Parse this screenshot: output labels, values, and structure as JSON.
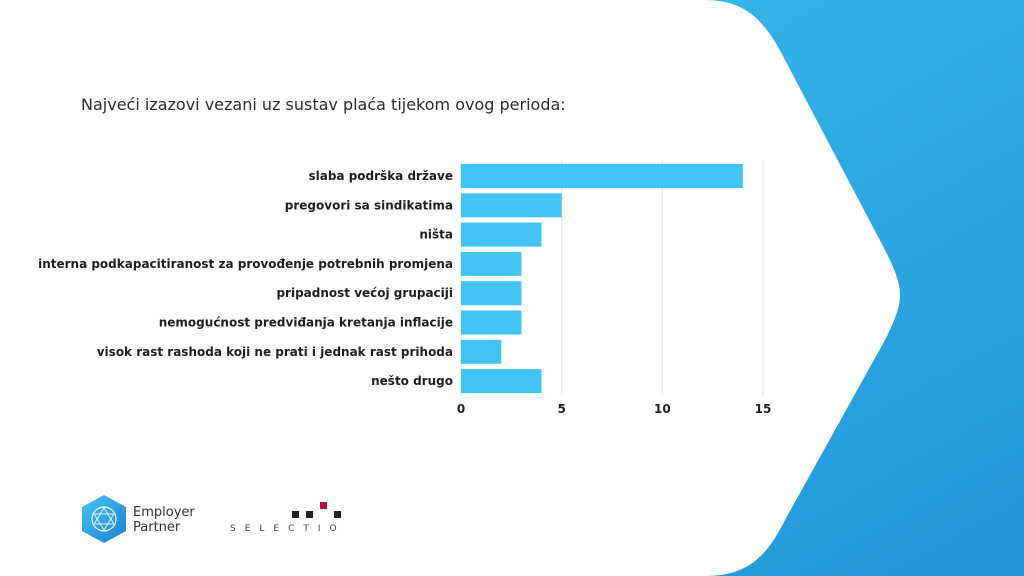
{
  "colors": {
    "bar": "#41c4f3",
    "accent_square": "#b0103a",
    "background_gradient_start": "#3fc3f0",
    "background_gradient_end": "#2196d9"
  },
  "footer": {
    "employer_partner_line1": "Employer",
    "employer_partner_line2": "Partner",
    "selectio": "SELECTIO"
  },
  "chart_data": {
    "type": "bar",
    "orientation": "horizontal",
    "title": "Najveći izazovi vezani uz sustav plaća tijekom ovog perioda:",
    "categories": [
      "slaba podrška države",
      "pregovori sa sindikatima",
      "ništa",
      "interna podkapacitiranost za provođenje potrebnih promjena",
      "pripadnost većoj grupaciji",
      "nemogućnost predviđanja kretanja inflacije",
      "visok rast rashoda koji ne prati i jednak rast prihoda",
      "nešto drugo"
    ],
    "values": [
      14,
      5,
      4,
      3,
      3,
      3,
      2,
      4
    ],
    "xticks": [
      0,
      5,
      10,
      15
    ],
    "xlim": [
      0,
      15
    ],
    "grid": true
  }
}
